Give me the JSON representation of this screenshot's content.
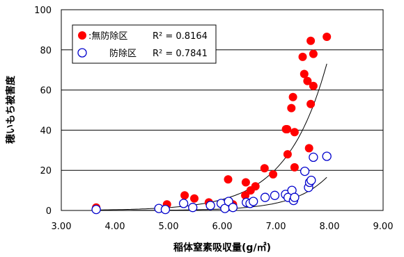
{
  "chart_data": {
    "type": "scatter",
    "xlabel": "稲体窒素吸収量(g/㎡)",
    "ylabel": "穂いもち被害度",
    "xlim": [
      3.0,
      9.0
    ],
    "ylim": [
      0,
      100
    ],
    "xticks": [
      "3.00",
      "4.00",
      "5.00",
      "6.00",
      "7.00",
      "8.00",
      "9.00"
    ],
    "yticks": [
      "0",
      "20",
      "40",
      "60",
      "80",
      "100"
    ],
    "grid": "horizontal",
    "legend_position": "top-left",
    "series": [
      {
        "name": "無防除区",
        "label": ":無防除区",
        "r2_label": "R² = 0.8164",
        "marker": "filled-circle",
        "color": "#ff0000",
        "trend": [
          0.00187,
          1.33
        ],
        "points": [
          [
            3.65,
            1.5
          ],
          [
            4.97,
            3.0
          ],
          [
            5.3,
            7.5
          ],
          [
            5.48,
            6.0
          ],
          [
            5.75,
            4.0
          ],
          [
            6.11,
            15.5
          ],
          [
            6.2,
            3.0
          ],
          [
            6.43,
            7.5
          ],
          [
            6.44,
            14.0
          ],
          [
            6.53,
            10.0
          ],
          [
            6.62,
            12.0
          ],
          [
            6.79,
            21.0
          ],
          [
            6.95,
            18.0
          ],
          [
            7.19,
            40.5
          ],
          [
            7.21,
            40.5
          ],
          [
            7.22,
            28.0
          ],
          [
            7.29,
            51.0
          ],
          [
            7.32,
            56.5
          ],
          [
            7.35,
            39.0
          ],
          [
            7.35,
            21.5
          ],
          [
            7.5,
            76.5
          ],
          [
            7.53,
            68.0
          ],
          [
            7.59,
            64.5
          ],
          [
            7.62,
            31.0
          ],
          [
            7.65,
            84.5
          ],
          [
            7.65,
            53.0
          ],
          [
            7.7,
            78.0
          ],
          [
            7.7,
            62.0
          ],
          [
            7.95,
            86.5
          ]
        ]
      },
      {
        "name": "防除区",
        "label": "防除区",
        "r2_label": "R² = 0.7841",
        "marker": "open-circle",
        "color": "#0000cc",
        "trend": [
          4.95e-05,
          1.6
        ],
        "points": [
          [
            3.65,
            0.5
          ],
          [
            4.82,
            1.0
          ],
          [
            4.94,
            0.5
          ],
          [
            5.28,
            3.5
          ],
          [
            5.45,
            1.5
          ],
          [
            5.78,
            2.5
          ],
          [
            5.98,
            3.5
          ],
          [
            6.05,
            1.0
          ],
          [
            6.12,
            4.5
          ],
          [
            6.2,
            1.5
          ],
          [
            6.45,
            4.0
          ],
          [
            6.52,
            3.5
          ],
          [
            6.58,
            4.5
          ],
          [
            6.8,
            6.5
          ],
          [
            6.98,
            7.5
          ],
          [
            7.18,
            8.0
          ],
          [
            7.23,
            6.5
          ],
          [
            7.3,
            10.0
          ],
          [
            7.33,
            5.0
          ],
          [
            7.35,
            6.5
          ],
          [
            7.54,
            19.5
          ],
          [
            7.61,
            11.5
          ],
          [
            7.63,
            14.0
          ],
          [
            7.66,
            15.0
          ],
          [
            7.7,
            26.5
          ],
          [
            7.95,
            27.0
          ]
        ]
      }
    ]
  }
}
